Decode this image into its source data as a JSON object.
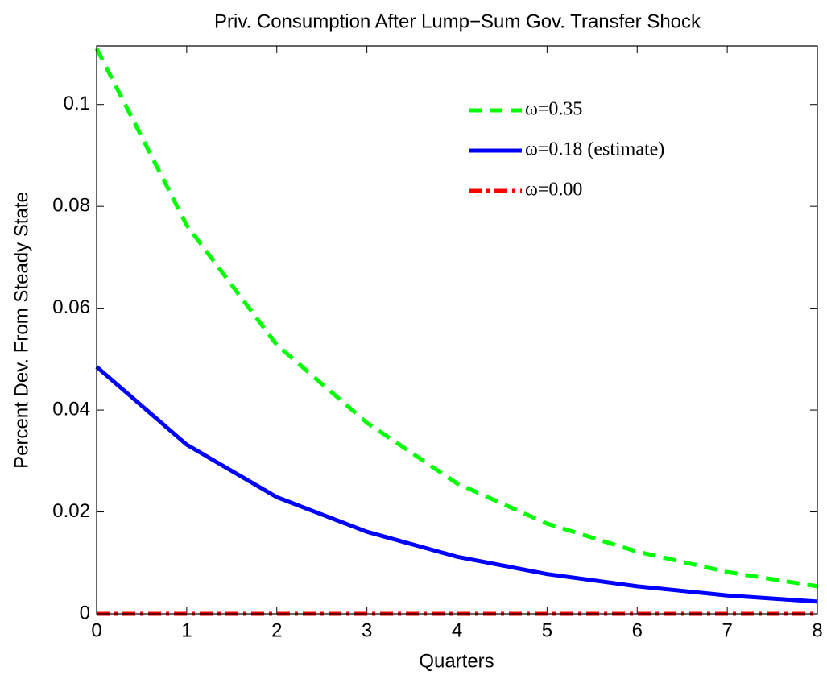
{
  "chart_data": {
    "type": "line",
    "title": "Priv. Consumption After Lump−Sum Gov. Transfer Shock",
    "x_label": "Quarters",
    "y_label": "Percent Dev. From Steady State",
    "x": [
      0,
      1,
      2,
      3,
      4,
      5,
      6,
      7,
      8
    ],
    "xlim": [
      0,
      8
    ],
    "xticks": [
      0,
      1,
      2,
      3,
      4,
      5,
      6,
      7,
      8
    ],
    "ylim": [
      0,
      0.1115
    ],
    "yticks": [
      0,
      0.02,
      0.04,
      0.06,
      0.08,
      0.1
    ],
    "legend": "upper right",
    "series": [
      {
        "name": "ω=0.35",
        "color": "#00ff00",
        "dash": "dashed",
        "values": [
          0.111,
          0.0763,
          0.0528,
          0.0375,
          0.0256,
          0.0177,
          0.0122,
          0.0082,
          0.0054
        ]
      },
      {
        "name": "ω=0.18 (estimate)",
        "color": "#0000ff",
        "dash": "solid",
        "values": [
          0.0485,
          0.0332,
          0.0229,
          0.0161,
          0.0112,
          0.0078,
          0.0054,
          0.0036,
          0.0024
        ]
      },
      {
        "name": "ω=0.00",
        "color": "#ff0000",
        "dash": "dashdot",
        "values": [
          0,
          0,
          0,
          0,
          0,
          0,
          0,
          0,
          0
        ]
      }
    ]
  }
}
